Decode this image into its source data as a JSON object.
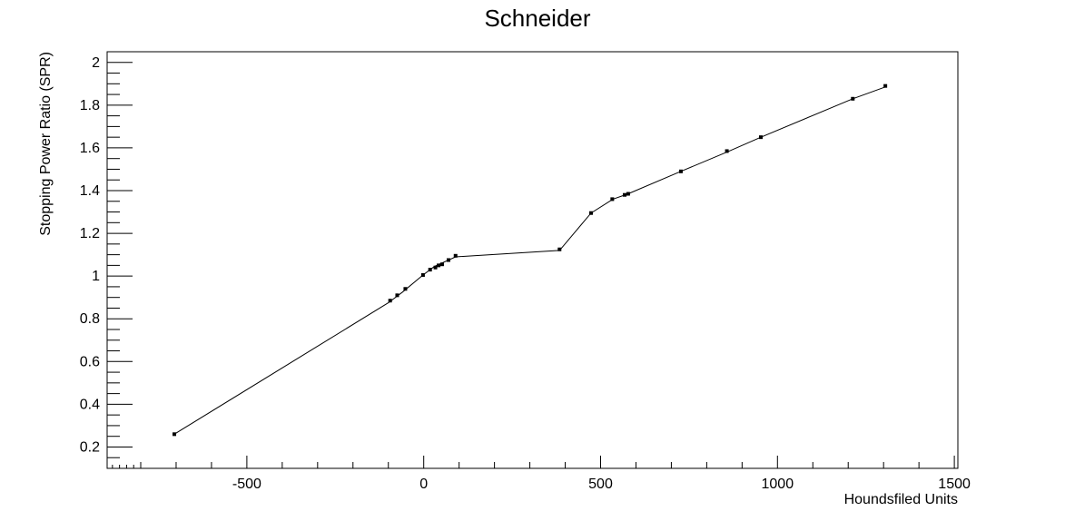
{
  "chart_data": {
    "type": "line",
    "title": "Schneider",
    "xlabel": "Houndsfiled Units",
    "ylabel": "Stopping Power Ratio (SPR)",
    "xlim": [
      -895,
      1510
    ],
    "ylim": [
      0.1,
      2.05
    ],
    "x_ticks": [
      -500,
      0,
      500,
      1000,
      1500
    ],
    "x_tick_labels": [
      "-500",
      "0",
      "500",
      "1000",
      "1500"
    ],
    "y_ticks": [
      0.2,
      0.4,
      0.6,
      0.8,
      1.0,
      1.2,
      1.4,
      1.6,
      1.8,
      2.0
    ],
    "y_tick_labels": [
      "0.2",
      "0.4",
      "0.6",
      "0.8",
      "1",
      "1.2",
      "1.4",
      "1.6",
      "1.8",
      "2"
    ],
    "grid": false,
    "legend": "none",
    "series": [
      {
        "mark": "marker",
        "x": [
          -705,
          -95,
          -75,
          -52,
          -2,
          18,
          33,
          42,
          52,
          70,
          90,
          384,
          473,
          533,
          568,
          578,
          727,
          857,
          953,
          1213,
          1305
        ],
        "y": [
          0.26,
          0.885,
          0.91,
          0.94,
          1.005,
          1.03,
          1.04,
          1.05,
          1.055,
          1.075,
          1.095,
          1.125,
          1.295,
          1.36,
          1.38,
          1.385,
          1.49,
          1.585,
          1.65,
          1.83,
          1.89
        ]
      },
      {
        "mark": "line",
        "x": [
          -705,
          -100,
          -60,
          -2,
          30,
          90,
          384,
          473,
          535,
          578,
          727,
          857,
          953,
          1213,
          1305
        ],
        "y": [
          0.26,
          0.875,
          0.925,
          1.005,
          1.045,
          1.09,
          1.12,
          1.295,
          1.36,
          1.385,
          1.49,
          1.58,
          1.65,
          1.83,
          1.885
        ]
      }
    ]
  }
}
